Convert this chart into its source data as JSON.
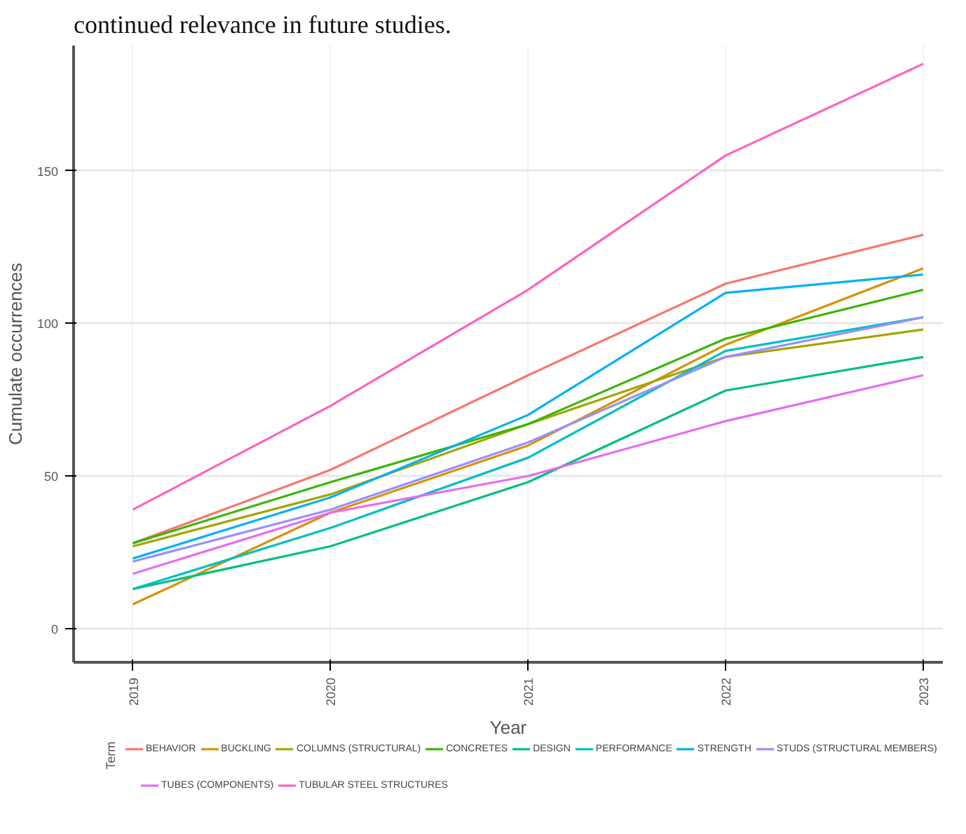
{
  "chart_data": {
    "type": "line",
    "annotations": [
      "continued relevance in future studies."
    ],
    "xlabel": "Year",
    "ylabel": "Cumulate occurrences",
    "legend_title": "Term",
    "categories": [
      "2019",
      "2020",
      "2021",
      "2022",
      "2023"
    ],
    "ylim": [
      -11,
      191
    ],
    "yticks": [
      0,
      50,
      100,
      150
    ],
    "grid": true,
    "legend": "bottom",
    "series": [
      {
        "name": "BEHAVIOR",
        "color": "#f8766d",
        "values": [
          28,
          52,
          83,
          113,
          129
        ]
      },
      {
        "name": "BUCKLING",
        "color": "#d89000",
        "values": [
          8,
          38,
          60,
          93,
          118
        ]
      },
      {
        "name": "COLUMNS (STRUCTURAL)",
        "color": "#a3a500",
        "values": [
          27,
          44,
          67,
          89,
          98
        ]
      },
      {
        "name": "CONCRETES",
        "color": "#39b600",
        "values": [
          28,
          48,
          67,
          95,
          111
        ]
      },
      {
        "name": "DESIGN",
        "color": "#00bf7d",
        "values": [
          13,
          27,
          48,
          78,
          89
        ]
      },
      {
        "name": "PERFORMANCE",
        "color": "#00bfc4",
        "values": [
          13,
          33,
          56,
          91,
          102
        ]
      },
      {
        "name": "STRENGTH",
        "color": "#00b0f6",
        "values": [
          23,
          43,
          70,
          110,
          116
        ]
      },
      {
        "name": "STUDS (STRUCTURAL MEMBERS)",
        "color": "#9590ff",
        "values": [
          22,
          39,
          61,
          89,
          102
        ]
      },
      {
        "name": "TUBES (COMPONENTS)",
        "color": "#e76bf3",
        "values": [
          18,
          38,
          50,
          68,
          83
        ]
      },
      {
        "name": "TUBULAR STEEL STRUCTURES",
        "color": "#ff62bc",
        "values": [
          39,
          73,
          111,
          155,
          185
        ]
      }
    ]
  }
}
